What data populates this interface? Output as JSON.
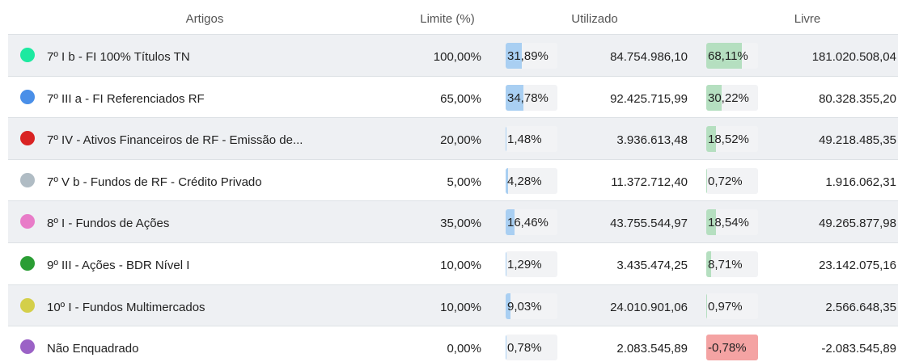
{
  "header": {
    "artigos": "Artigos",
    "limite": "Limite (%)",
    "utilizado": "Utilizado",
    "livre": "Livre"
  },
  "rows": [
    {
      "color": "#1de9a0",
      "artigo": "7º I b - FI 100% Títulos TN",
      "limite": "100,00%",
      "utilizado_pct": "31,89%",
      "utilizado": "84.754.986,10",
      "livre_pct": "68,11%",
      "livre": "181.020.508,04"
    },
    {
      "color": "#4a8fe8",
      "artigo": "7º III a - FI Referenciados RF",
      "limite": "65,00%",
      "utilizado_pct": "34,78%",
      "utilizado": "92.425.715,99",
      "livre_pct": "30,22%",
      "livre": "80.328.355,20"
    },
    {
      "color": "#d92323",
      "artigo": "7º IV - Ativos Financeiros de RF - Emissão de...",
      "limite": "20,00%",
      "utilizado_pct": "1,48%",
      "utilizado": "3.936.613,48",
      "livre_pct": "18,52%",
      "livre": "49.218.485,35"
    },
    {
      "color": "#b0bcc4",
      "artigo": "7º V b - Fundos de RF - Crédito Privado",
      "limite": "5,00%",
      "utilizado_pct": "4,28%",
      "utilizado": "11.372.712,40",
      "livre_pct": "0,72%",
      "livre": "1.916.062,31"
    },
    {
      "color": "#e87cc8",
      "artigo": "8º I - Fundos de Ações",
      "limite": "35,00%",
      "utilizado_pct": "16,46%",
      "utilizado": "43.755.544,97",
      "livre_pct": "18,54%",
      "livre": "49.265.877,98"
    },
    {
      "color": "#2a9d34",
      "artigo": "9º III - Ações - BDR Nível I",
      "limite": "10,00%",
      "utilizado_pct": "1,29%",
      "utilizado": "3.435.474,25",
      "livre_pct": "8,71%",
      "livre": "23.142.075,16"
    },
    {
      "color": "#d4cf4a",
      "artigo": "10º I - Fundos Multimercados",
      "limite": "10,00%",
      "utilizado_pct": "9,03%",
      "utilizado": "24.010.901,06",
      "livre_pct": "0,97%",
      "livre": "2.566.648,35"
    },
    {
      "color": "#9b62c6",
      "artigo": "Não Enquadrado",
      "limite": "0,00%",
      "utilizado_pct": "0,78%",
      "utilizado": "2.083.545,89",
      "livre_pct": "-0,78%",
      "livre": "-2.083.545,89"
    }
  ]
}
